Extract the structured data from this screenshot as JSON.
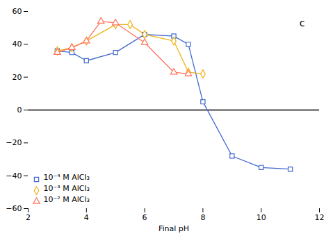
{
  "chart_data": {
    "type": "line",
    "xlabel": "Final pH",
    "series": [
      {
        "name": "10⁻⁴ M AlCl₃",
        "marker": "square",
        "x": [
          3.0,
          3.5,
          4.0,
          5.0,
          6.0,
          7.0,
          7.5,
          8.0,
          9.0,
          10.0,
          11.0
        ],
        "values": [
          36,
          35,
          30,
          35,
          46,
          45,
          40,
          5,
          -28,
          -35,
          -36
        ]
      },
      {
        "name": "10⁻³ M AlCl₃",
        "marker": "diamond",
        "x": [
          3.0,
          3.5,
          4.0,
          5.0,
          5.5,
          6.0,
          7.0,
          7.5,
          8.0
        ],
        "values": [
          36,
          38,
          42,
          52,
          52,
          46,
          42,
          23,
          22
        ]
      },
      {
        "name": "10⁻² M AlCl₃",
        "marker": "triangle",
        "x": [
          3.0,
          3.5,
          4.0,
          4.5,
          5.0,
          6.0,
          7.0,
          7.5
        ],
        "values": [
          35,
          38,
          42,
          54,
          53,
          41,
          23,
          22
        ]
      }
    ],
    "xlim": [
      2,
      12
    ],
    "ylim": [
      -60,
      60
    ],
    "xticks": [
      2,
      4,
      6,
      8,
      10,
      12
    ],
    "yticks": [
      -60,
      -40,
      -20,
      0,
      20,
      40,
      60
    ],
    "annotations": [
      {
        "text": "c",
        "x": 11.5,
        "y": 55
      }
    ],
    "legend": "lower left",
    "grid": false
  }
}
